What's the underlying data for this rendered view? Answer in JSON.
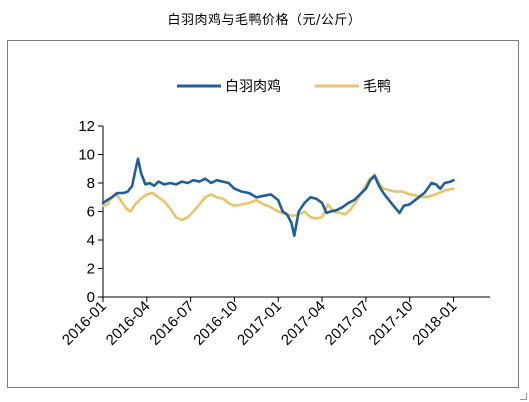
{
  "chart_data": {
    "type": "line",
    "title": "白羽肉鸡与毛鸭价格（元/公斤）",
    "xlabel": "",
    "ylabel": "",
    "ylim": [
      0,
      12
    ],
    "yticks": [
      0,
      2,
      4,
      6,
      8,
      10,
      12
    ],
    "grid": false,
    "legend": "top",
    "x_ticks": [
      "2016-01",
      "2016-04",
      "2016-07",
      "2016-10",
      "2017-01",
      "2017-04",
      "2017-07",
      "2017-10",
      "2018-01"
    ],
    "x_range_months": [
      0,
      26.5
    ],
    "series": [
      {
        "name": "白羽肉鸡",
        "color": "#1f5fa0",
        "points": [
          [
            0,
            6.6
          ],
          [
            0.3,
            6.8
          ],
          [
            0.6,
            7.0
          ],
          [
            1.0,
            7.3
          ],
          [
            1.4,
            7.3
          ],
          [
            1.7,
            7.4
          ],
          [
            2.0,
            7.8
          ],
          [
            2.2,
            8.8
          ],
          [
            2.4,
            9.7
          ],
          [
            2.6,
            8.7
          ],
          [
            2.9,
            7.9
          ],
          [
            3.2,
            8.0
          ],
          [
            3.5,
            7.8
          ],
          [
            3.8,
            8.1
          ],
          [
            4.2,
            7.9
          ],
          [
            4.6,
            8.0
          ],
          [
            5.0,
            7.9
          ],
          [
            5.4,
            8.1
          ],
          [
            5.8,
            8.0
          ],
          [
            6.2,
            8.2
          ],
          [
            6.6,
            8.1
          ],
          [
            7.0,
            8.3
          ],
          [
            7.4,
            8.0
          ],
          [
            7.8,
            8.2
          ],
          [
            8.2,
            8.1
          ],
          [
            8.6,
            8.0
          ],
          [
            9.0,
            7.6
          ],
          [
            9.5,
            7.4
          ],
          [
            10.0,
            7.3
          ],
          [
            10.5,
            7.0
          ],
          [
            11.0,
            7.1
          ],
          [
            11.5,
            7.2
          ],
          [
            12.0,
            6.8
          ],
          [
            12.3,
            6.0
          ],
          [
            12.6,
            5.8
          ],
          [
            12.9,
            5.2
          ],
          [
            13.1,
            4.3
          ],
          [
            13.4,
            6.0
          ],
          [
            13.8,
            6.6
          ],
          [
            14.2,
            7.0
          ],
          [
            14.6,
            6.9
          ],
          [
            15.0,
            6.6
          ],
          [
            15.3,
            5.9
          ],
          [
            15.6,
            6.0
          ],
          [
            16.0,
            6.1
          ],
          [
            16.4,
            6.3
          ],
          [
            16.8,
            6.6
          ],
          [
            17.2,
            6.8
          ],
          [
            17.6,
            7.2
          ],
          [
            18.0,
            7.6
          ],
          [
            18.3,
            8.2
          ],
          [
            18.6,
            8.5
          ],
          [
            18.9,
            7.8
          ],
          [
            19.2,
            7.3
          ],
          [
            19.5,
            6.9
          ],
          [
            19.9,
            6.4
          ],
          [
            20.3,
            5.9
          ],
          [
            20.6,
            6.4
          ],
          [
            21.0,
            6.5
          ],
          [
            21.5,
            6.9
          ],
          [
            22.0,
            7.3
          ],
          [
            22.5,
            8.0
          ],
          [
            22.8,
            7.9
          ],
          [
            23.1,
            7.6
          ],
          [
            23.4,
            8.0
          ],
          [
            23.8,
            8.1
          ],
          [
            24.0,
            8.2
          ]
        ]
      },
      {
        "name": "毛鸭",
        "color": "#e9c46a",
        "points": [
          [
            0,
            6.4
          ],
          [
            0.3,
            6.5
          ],
          [
            0.6,
            7.0
          ],
          [
            0.9,
            7.3
          ],
          [
            1.2,
            6.8
          ],
          [
            1.6,
            6.2
          ],
          [
            1.9,
            6.0
          ],
          [
            2.2,
            6.5
          ],
          [
            2.6,
            6.9
          ],
          [
            3.0,
            7.2
          ],
          [
            3.4,
            7.3
          ],
          [
            3.8,
            7.0
          ],
          [
            4.2,
            6.7
          ],
          [
            4.6,
            6.2
          ],
          [
            5.0,
            5.6
          ],
          [
            5.4,
            5.4
          ],
          [
            5.8,
            5.6
          ],
          [
            6.2,
            6.0
          ],
          [
            6.6,
            6.5
          ],
          [
            7.0,
            7.0
          ],
          [
            7.4,
            7.2
          ],
          [
            7.8,
            7.0
          ],
          [
            8.2,
            6.9
          ],
          [
            8.6,
            6.6
          ],
          [
            9.0,
            6.4
          ],
          [
            9.5,
            6.5
          ],
          [
            10.0,
            6.6
          ],
          [
            10.5,
            6.8
          ],
          [
            11.0,
            6.5
          ],
          [
            11.5,
            6.3
          ],
          [
            12.0,
            6.0
          ],
          [
            12.5,
            5.8
          ],
          [
            13.0,
            5.7
          ],
          [
            13.4,
            5.8
          ],
          [
            13.8,
            6.0
          ],
          [
            14.2,
            5.6
          ],
          [
            14.6,
            5.5
          ],
          [
            15.0,
            5.6
          ],
          [
            15.4,
            6.5
          ],
          [
            15.8,
            6.0
          ],
          [
            16.2,
            5.9
          ],
          [
            16.6,
            5.8
          ],
          [
            17.0,
            6.2
          ],
          [
            17.4,
            6.8
          ],
          [
            17.8,
            7.5
          ],
          [
            18.2,
            8.2
          ],
          [
            18.6,
            8.6
          ],
          [
            18.9,
            8.0
          ],
          [
            19.2,
            7.6
          ],
          [
            19.6,
            7.5
          ],
          [
            20.0,
            7.4
          ],
          [
            20.5,
            7.4
          ],
          [
            21.0,
            7.2
          ],
          [
            21.5,
            7.1
          ],
          [
            22.0,
            7.0
          ],
          [
            22.5,
            7.1
          ],
          [
            23.0,
            7.3
          ],
          [
            23.5,
            7.5
          ],
          [
            24.0,
            7.6
          ]
        ]
      }
    ]
  }
}
